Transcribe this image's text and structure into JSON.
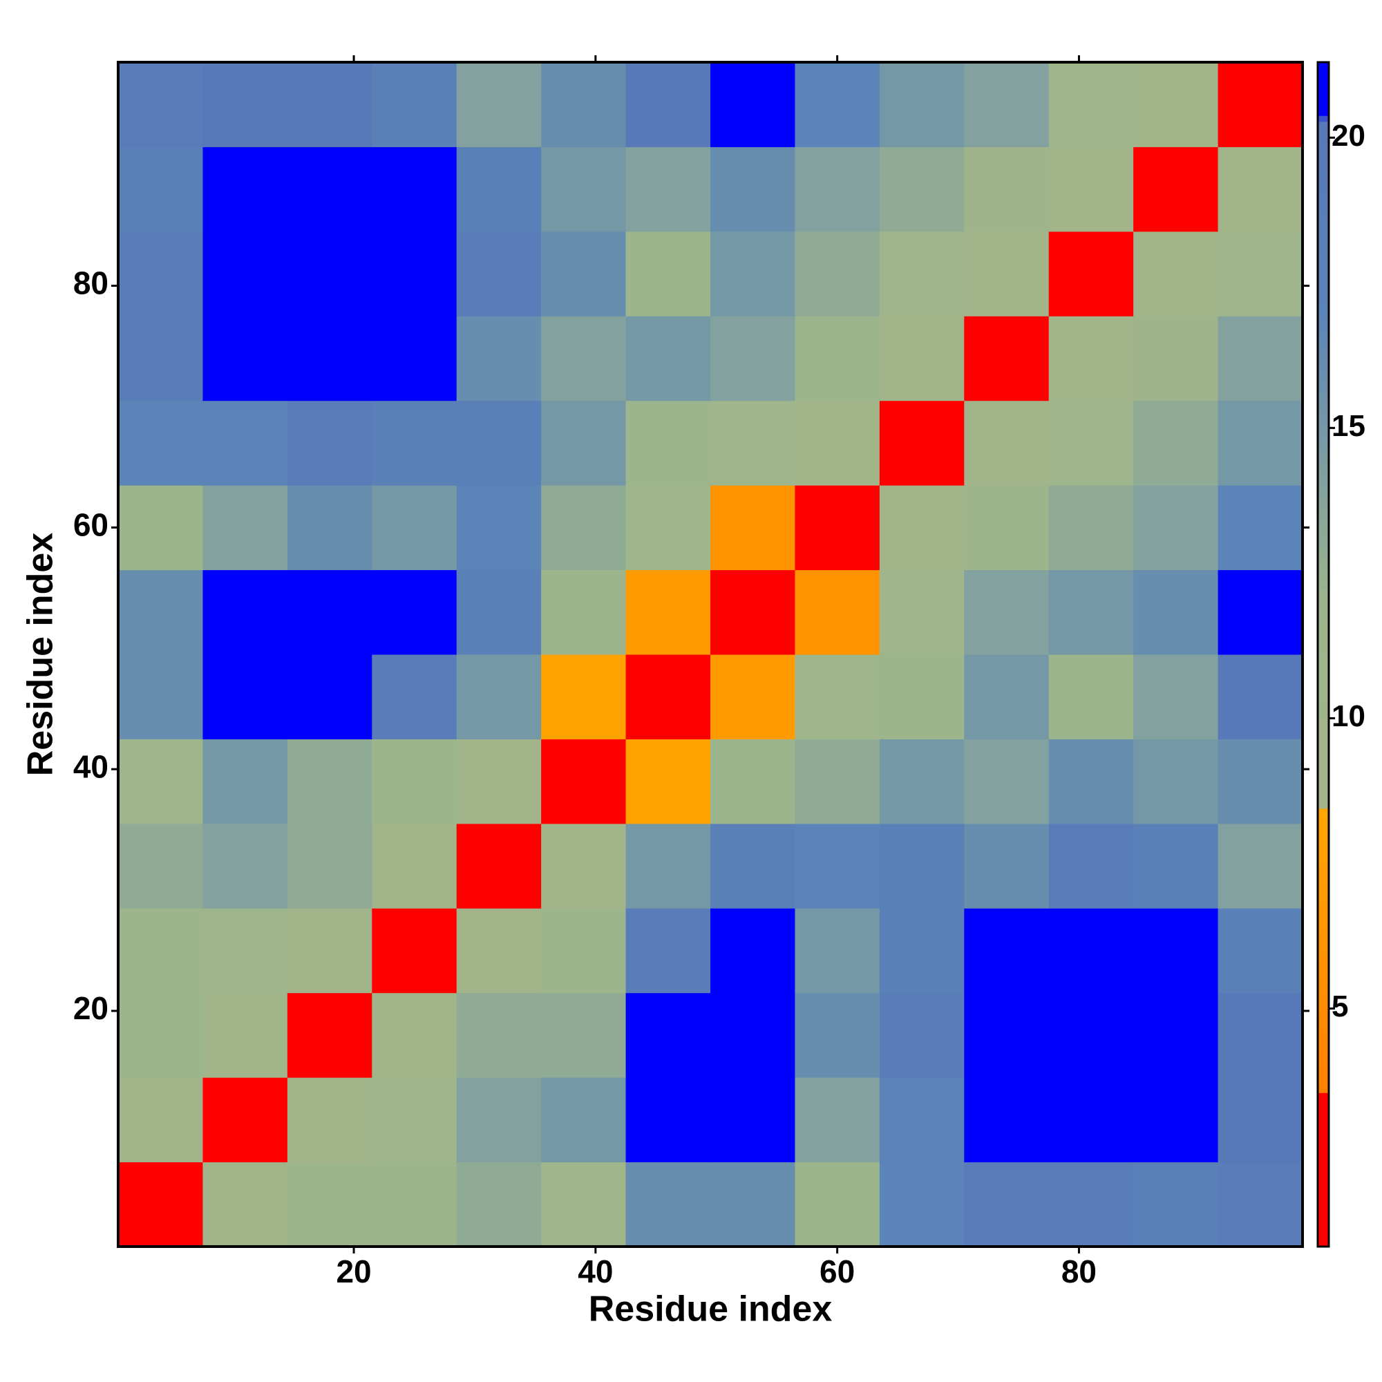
{
  "chart_data": {
    "type": "heatmap",
    "x_label": "Residue index",
    "y_label": "Residue index",
    "xbins": [
      0.5,
      7.5,
      14.5,
      21.5,
      28.5,
      35.5,
      42.5,
      49.5,
      56.5,
      63.5,
      70.5,
      77.5,
      84.5,
      91.5,
      98.5
    ],
    "ybins": [
      0.5,
      7.5,
      14.5,
      21.5,
      28.5,
      35.5,
      42.5,
      49.5,
      56.5,
      63.5,
      70.5,
      77.5,
      84.5,
      91.5,
      98.5
    ],
    "z": [
      [
        3,
        9,
        12,
        12,
        13,
        11,
        16,
        16,
        12,
        17,
        19,
        19,
        18,
        19
      ],
      [
        9,
        3,
        9,
        11,
        14,
        15,
        21,
        21,
        14,
        17,
        21,
        21,
        21,
        20
      ],
      [
        12,
        9,
        3,
        9,
        13,
        13,
        21,
        21,
        16,
        19,
        21,
        21,
        21,
        20
      ],
      [
        12,
        11,
        9,
        3,
        9,
        12,
        19,
        21,
        15,
        18,
        21,
        21,
        21,
        18
      ],
      [
        13,
        14,
        13,
        9,
        3,
        9,
        15,
        18,
        17,
        18,
        16,
        19,
        18,
        14
      ],
      [
        11,
        15,
        13,
        12,
        9,
        3,
        8,
        12,
        13,
        15,
        14,
        16,
        15,
        16
      ],
      [
        16,
        21,
        21,
        19,
        15,
        8,
        3,
        7,
        11,
        12,
        15,
        12,
        14,
        20
      ],
      [
        16,
        21,
        21,
        21,
        18,
        12,
        7,
        3,
        6,
        11,
        14,
        15,
        16,
        21
      ],
      [
        12,
        14,
        16,
        15,
        17,
        13,
        11,
        6,
        3,
        9,
        12,
        13,
        14,
        17
      ],
      [
        17,
        17,
        19,
        18,
        18,
        15,
        12,
        11,
        9,
        3,
        9,
        11,
        13,
        15
      ],
      [
        19,
        21,
        21,
        21,
        16,
        14,
        15,
        14,
        12,
        9,
        3,
        9,
        10,
        14
      ],
      [
        19,
        21,
        21,
        21,
        19,
        16,
        12,
        15,
        13,
        11,
        9,
        3,
        9,
        11
      ],
      [
        18,
        21,
        21,
        21,
        18,
        15,
        14,
        16,
        14,
        13,
        10,
        9,
        3,
        9
      ],
      [
        19,
        20,
        20,
        18,
        14,
        16,
        20,
        21,
        17,
        15,
        14,
        11,
        9,
        3
      ]
    ],
    "xlim": [
      0.5,
      98.5
    ],
    "ylim": [
      0.5,
      98.5
    ],
    "xticks": [
      20,
      40,
      60,
      80
    ],
    "yticks": [
      20,
      40,
      60,
      80
    ],
    "zlim": [
      0.9,
      21.3
    ],
    "zticks": [
      5,
      10,
      15,
      20
    ],
    "colorscale": [
      {
        "value": 0.9,
        "color": "#ff0000"
      },
      {
        "value": 3.5,
        "color": "#ff0000"
      },
      {
        "value": 3.6,
        "color": "#ff8000"
      },
      {
        "value": 8.4,
        "color": "#ffa500"
      },
      {
        "value": 8.5,
        "color": "#a3b48a"
      },
      {
        "value": 12,
        "color": "#9db58c"
      },
      {
        "value": 17,
        "color": "#5b84b8"
      },
      {
        "value": 20.3,
        "color": "#5878b8"
      },
      {
        "value": 20.4,
        "color": "#0000ff"
      },
      {
        "value": 21.3,
        "color": "#0000ff"
      }
    ]
  }
}
